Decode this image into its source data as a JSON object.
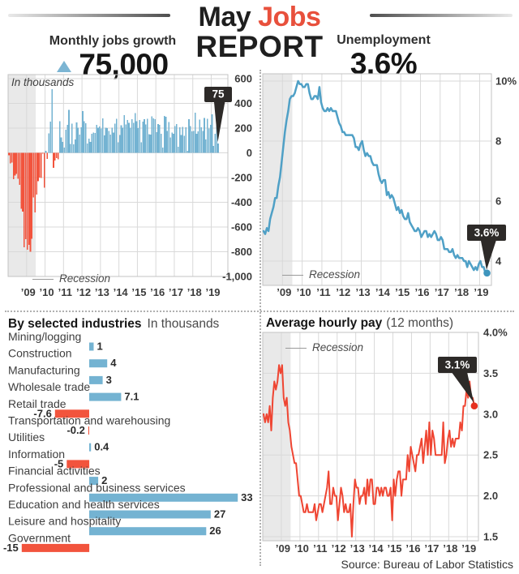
{
  "header": {
    "title_word1": "May",
    "title_word2": "Jobs",
    "title_line2": "REPORT"
  },
  "stats": {
    "left_label": "Monthly jobs growth",
    "left_value": "75,000",
    "right_label": "Unemployment",
    "right_value": "3.6%"
  },
  "footer": {
    "source": "Source: Bureau of Labor Statistics"
  },
  "colors": {
    "accent_red": "#e8503c",
    "bar_positive_blue": "#74b3d2",
    "bar_negative_red": "#f2543d",
    "line_blue": "#4fa0c6",
    "dot_blue": "#3e95bd",
    "line_red": "#ef4532",
    "dot_red": "#e6301f",
    "callout_bg": "#2d2a28",
    "recession_band": "#e9e9e9",
    "grid": "#d9d9d9",
    "plot_border": "#c3c3c3",
    "triangle_blue": "#7cb5d3"
  },
  "chart_data": [
    {
      "id": "jobs_growth",
      "type": "bar",
      "title": "In thousands",
      "recession_label": "Recession",
      "callout_label": "75",
      "x_monthly_start": "2008-01",
      "x_monthly_end": "2019-05",
      "recession_band": [
        2008.0,
        2009.5
      ],
      "ylim": [
        -1000,
        600
      ],
      "ytick_values": [
        600,
        400,
        200,
        0,
        -200,
        -400,
        -600,
        -800,
        -1000
      ],
      "ytick_labels": [
        "600",
        "400",
        "200",
        "0",
        "-200",
        "-400",
        "-600",
        "-800",
        "-1,000"
      ],
      "xtick_years": [
        2009,
        2010,
        2011,
        2012,
        2013,
        2014,
        2015,
        2016,
        2017,
        2018,
        2019
      ],
      "xtick_labels": [
        "’09",
        "’10",
        "’11",
        "’12",
        "’13",
        "’14",
        "’15",
        "’16",
        "’17",
        "’18",
        "’19"
      ],
      "values": [
        -18,
        -86,
        -80,
        -214,
        -182,
        -172,
        -210,
        -259,
        -452,
        -474,
        -765,
        -697,
        -783,
        -743,
        -800,
        -695,
        -361,
        -482,
        -339,
        -231,
        -199,
        -202,
        -8,
        -283,
        18,
        -50,
        156,
        251,
        516,
        -122,
        -61,
        -42,
        -52,
        257,
        123,
        88,
        42,
        188,
        225,
        346,
        73,
        235,
        70,
        107,
        246,
        202,
        146,
        207,
        338,
        257,
        239,
        75,
        115,
        87,
        153,
        165,
        161,
        225,
        203,
        214,
        197,
        280,
        141,
        203,
        199,
        177,
        149,
        202,
        164,
        237,
        274,
        84,
        144,
        222,
        203,
        304,
        229,
        267,
        243,
        203,
        271,
        243,
        321,
        256,
        201,
        266,
        84,
        251,
        273,
        228,
        277,
        150,
        149,
        295,
        280,
        271,
        168,
        233,
        225,
        153,
        43,
        297,
        291,
        176,
        249,
        124,
        164,
        155,
        216,
        232,
        50,
        207,
        145,
        210,
        139,
        208,
        18,
        271,
        216,
        175,
        176,
        324,
        155,
        175,
        268,
        208,
        178,
        282,
        108,
        277,
        196,
        227,
        312,
        56,
        153,
        224,
        75
      ]
    },
    {
      "id": "unemployment",
      "type": "line",
      "recession_label": "Recession",
      "callout_label": "3.6%",
      "x_monthly_start": "2008-01",
      "x_monthly_end": "2019-05",
      "recession_band": [
        2008.0,
        2009.5
      ],
      "ylim": [
        3.2,
        10.2
      ],
      "ytick_values": [
        10,
        8,
        6,
        4
      ],
      "ytick_labels": [
        "10%",
        "8",
        "6",
        "4"
      ],
      "xtick_years": [
        2009,
        2010,
        2011,
        2012,
        2013,
        2014,
        2015,
        2016,
        2017,
        2018,
        2019
      ],
      "xtick_labels": [
        "’09",
        "’10",
        "’11",
        "’12",
        "’13",
        "’14",
        "’15",
        "’16",
        "’17",
        "’18",
        "’19"
      ],
      "values": [
        5.0,
        4.9,
        5.1,
        5.0,
        5.4,
        5.6,
        5.8,
        6.1,
        6.1,
        6.5,
        6.8,
        7.3,
        7.8,
        8.3,
        8.7,
        9.0,
        9.4,
        9.5,
        9.5,
        9.6,
        9.8,
        10.0,
        9.9,
        9.9,
        9.8,
        9.8,
        9.9,
        9.9,
        9.6,
        9.4,
        9.4,
        9.5,
        9.5,
        9.4,
        9.8,
        9.3,
        9.1,
        9.0,
        9.0,
        9.1,
        9.0,
        9.1,
        9.0,
        9.0,
        9.0,
        8.8,
        8.6,
        8.5,
        8.3,
        8.3,
        8.2,
        8.2,
        8.2,
        8.2,
        8.2,
        8.1,
        7.8,
        7.8,
        7.7,
        7.9,
        8.0,
        7.7,
        7.5,
        7.6,
        7.5,
        7.5,
        7.3,
        7.2,
        7.2,
        7.2,
        6.9,
        6.7,
        6.6,
        6.7,
        6.7,
        6.2,
        6.3,
        6.1,
        6.2,
        6.1,
        5.9,
        5.7,
        5.8,
        5.6,
        5.7,
        5.5,
        5.4,
        5.4,
        5.6,
        5.3,
        5.2,
        5.1,
        5.0,
        5.0,
        5.1,
        5.0,
        4.8,
        4.9,
        5.0,
        5.0,
        4.8,
        4.9,
        4.8,
        4.9,
        5.0,
        4.9,
        4.7,
        4.7,
        4.8,
        4.7,
        4.4,
        4.4,
        4.4,
        4.3,
        4.3,
        4.4,
        4.2,
        4.1,
        4.2,
        4.1,
        4.1,
        4.1,
        4.0,
        4.0,
        3.8,
        4.0,
        3.9,
        3.8,
        3.7,
        3.8,
        3.7,
        3.9,
        4.0,
        3.8,
        3.8,
        3.6,
        3.6
      ]
    },
    {
      "id": "industries",
      "type": "bar-horizontal",
      "title": "By selected industries",
      "subtitle": "In thousands",
      "categories": [
        "Mining/logging",
        "Construction",
        "Manufacturing",
        "Wholesale trade",
        "Retail trade",
        "Transportation and warehousing",
        "Utilities",
        "Information",
        "Financial activities",
        "Professional and business services",
        "Education and health services",
        "Leisure and hospitality",
        "Government"
      ],
      "values": [
        1,
        4,
        3,
        7.1,
        -7.6,
        -0.2,
        0.4,
        -5,
        2,
        33,
        27,
        26,
        -15
      ],
      "value_labels": [
        "1",
        "4",
        "3",
        "7.1",
        "-7.6",
        "-0.2",
        "0.4",
        "-5",
        "2",
        "33",
        "27",
        "26",
        "-15"
      ]
    },
    {
      "id": "hourly_pay",
      "type": "line",
      "title": "Average hourly pay",
      "title_suffix": "(12 months)",
      "recession_label": "Recession",
      "callout_label": "3.1%",
      "x_monthly_start": "2008-01",
      "x_monthly_end": "2019-05",
      "recession_band": [
        2008.0,
        2009.5
      ],
      "ylim": [
        1.45,
        4.0
      ],
      "ytick_values": [
        4.0,
        3.5,
        3.0,
        2.5,
        2.0,
        1.5
      ],
      "ytick_labels": [
        "4.0%",
        "3.5",
        "3.0",
        "2.5",
        "2.0",
        "1.5"
      ],
      "xtick_years": [
        2009,
        2010,
        2011,
        2012,
        2013,
        2014,
        2015,
        2016,
        2017,
        2018,
        2019
      ],
      "xtick_labels": [
        "’09",
        "’10",
        "’11",
        "’12",
        "’13",
        "’14",
        "’15",
        "’16",
        "’17",
        "’18",
        "’19"
      ],
      "values": [
        3.0,
        2.9,
        3.0,
        2.9,
        3.1,
        2.8,
        3.2,
        3.4,
        3.3,
        3.4,
        3.6,
        3.5,
        3.6,
        3.2,
        3.1,
        3.2,
        2.9,
        2.8,
        2.6,
        2.5,
        2.4,
        2.4,
        2.2,
        2.0,
        2.0,
        1.9,
        1.8,
        1.8,
        1.9,
        1.8,
        1.8,
        1.8,
        1.8,
        1.9,
        1.7,
        1.8,
        1.9,
        1.9,
        1.8,
        1.9,
        2.0,
        2.1,
        2.3,
        1.9,
        1.9,
        2.1,
        2.0,
        2.0,
        1.7,
        1.9,
        2.1,
        2.0,
        1.8,
        1.9,
        1.8,
        1.8,
        1.9,
        1.5,
        1.9,
        2.2,
        2.1,
        2.1,
        1.9,
        2.0,
        2.0,
        2.1,
        1.9,
        2.2,
        2.0,
        2.2,
        2.2,
        1.9,
        1.9,
        2.1,
        2.1,
        2.0,
        2.1,
        2.0,
        2.1,
        2.1,
        2.0,
        2.0,
        2.1,
        1.7,
        2.2,
        2.0,
        2.2,
        2.3,
        2.3,
        2.0,
        2.2,
        2.2,
        2.2,
        2.5,
        2.3,
        2.6,
        2.5,
        2.4,
        2.3,
        2.5,
        2.5,
        2.6,
        2.7,
        2.4,
        2.6,
        2.8,
        2.5,
        2.9,
        2.5,
        2.8,
        2.7,
        2.5,
        2.5,
        2.5,
        2.5,
        2.5,
        2.9,
        2.4,
        2.5,
        2.7,
        2.8,
        2.6,
        2.7,
        2.6,
        2.7,
        2.7,
        2.7,
        2.9,
        2.8,
        3.1,
        3.1,
        3.3,
        3.2,
        3.4,
        3.2,
        3.2,
        3.1
      ]
    }
  ]
}
